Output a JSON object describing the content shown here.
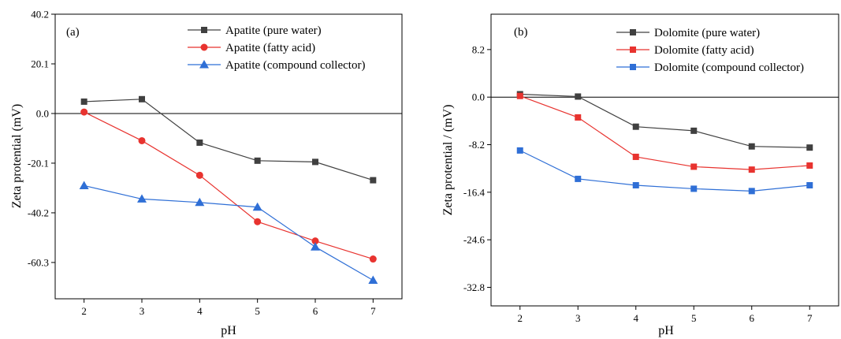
{
  "chart_data": [
    {
      "type": "line",
      "panel_label": "(a)",
      "xlabel": "pH",
      "ylabel": "Zeta protential (mV)",
      "x": [
        2,
        3,
        4,
        5,
        6,
        7
      ],
      "xlim": [
        1.5,
        7.5
      ],
      "ylim": [
        -75,
        40.2
      ],
      "yticks": [
        40.2,
        20.1,
        0.0,
        -20.1,
        -40.2,
        -60.3
      ],
      "ytick_labels": [
        "40.2",
        "20.1",
        "0.0",
        "-20.1",
        "-40.2",
        "-60.3"
      ],
      "zero_line": true,
      "grid": false,
      "legend_position": "top-right",
      "series": [
        {
          "name": "Apatite (pure water)",
          "color": "#404040",
          "marker": "square",
          "values": [
            4.8,
            5.8,
            -11.8,
            -19.1,
            -19.6,
            -27.0
          ]
        },
        {
          "name": "Apatite (fatty acid)",
          "color": "#e8332f",
          "marker": "circle",
          "values": [
            0.6,
            -11.0,
            -25.0,
            -43.8,
            -51.6,
            -58.9
          ]
        },
        {
          "name": "Apatite (compound collector)",
          "color": "#2f6fd6",
          "marker": "triangle",
          "values": [
            -29.2,
            -34.6,
            -36.0,
            -37.9,
            -54.0,
            -67.5
          ]
        }
      ]
    },
    {
      "type": "line",
      "panel_label": "(b)",
      "xlabel": "pH",
      "ylabel": "Zeta protential / (mV)",
      "x": [
        2,
        3,
        4,
        5,
        6,
        7
      ],
      "xlim": [
        1.5,
        7.5
      ],
      "ylim": [
        -36.0,
        14.3
      ],
      "yticks": [
        8.2,
        0.0,
        -8.2,
        -16.4,
        -24.6,
        -32.8
      ],
      "ytick_labels": [
        "8.2",
        "0.0",
        "-8.2",
        "-16.4",
        "-24.6",
        "-32.8"
      ],
      "zero_line": true,
      "grid": false,
      "legend_position": "top-right",
      "series": [
        {
          "name": "Dolomite (pure water)",
          "color": "#404040",
          "marker": "square",
          "values": [
            0.5,
            0.1,
            -5.1,
            -5.8,
            -8.5,
            -8.7
          ]
        },
        {
          "name": "Dolomite (fatty acid)",
          "color": "#e8332f",
          "marker": "square",
          "values": [
            0.2,
            -3.5,
            -10.3,
            -12.0,
            -12.5,
            -11.8
          ]
        },
        {
          "name": "Dolomite (compound collector)",
          "color": "#2f6fd6",
          "marker": "square",
          "values": [
            -9.2,
            -14.1,
            -15.2,
            -15.8,
            -16.2,
            -15.2
          ]
        }
      ]
    }
  ]
}
